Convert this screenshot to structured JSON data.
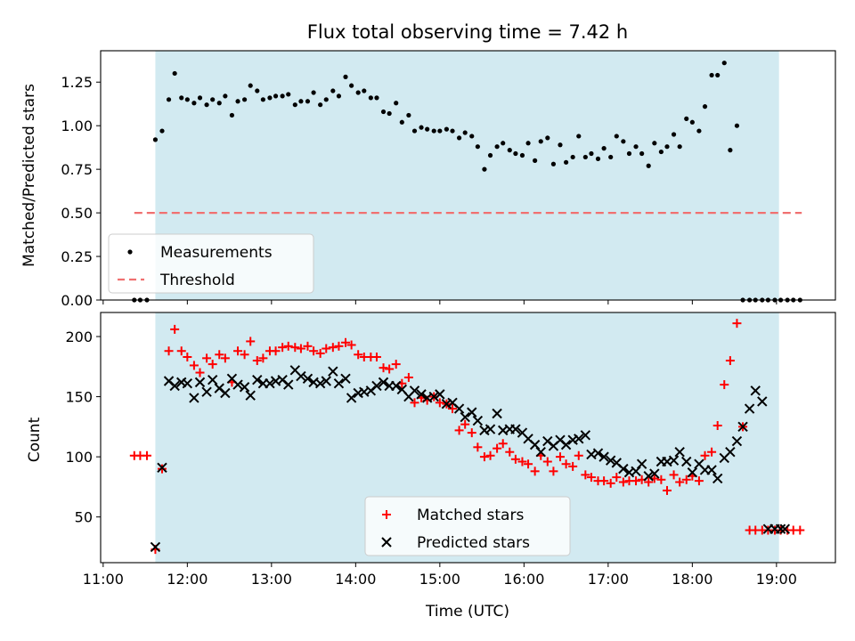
{
  "figure": {
    "title": "Flux total observing time = 7.42 h"
  },
  "chart_data": [
    {
      "type": "scatter",
      "panel": "top",
      "title": "Flux total observing time = 7.42 h",
      "xlabel": "",
      "ylabel": "Matched/Predicted stars",
      "xlim_hours": [
        10.97,
        19.7
      ],
      "ylim": [
        0,
        1.43
      ],
      "yticks": [
        0.0,
        0.25,
        0.5,
        0.75,
        1.0,
        1.25
      ],
      "ytick_labels": [
        "0.00",
        "0.25",
        "0.50",
        "0.75",
        "1.00",
        "1.25"
      ],
      "shaded_interval_hours": [
        11.62,
        19.03
      ],
      "shade_color": "#add8e6",
      "legend": {
        "placement": "lower-left",
        "entries": [
          "Measurements",
          "Threshold"
        ]
      },
      "series": [
        {
          "name": "Measurements",
          "kind": "scatter",
          "marker": "dot",
          "color": "#000000",
          "x": [
            11.37,
            11.44,
            11.52,
            11.62,
            11.7,
            11.78,
            11.85,
            11.93,
            12.0,
            12.08,
            12.15,
            12.23,
            12.3,
            12.38,
            12.45,
            12.53,
            12.6,
            12.68,
            12.75,
            12.83,
            12.9,
            12.98,
            13.05,
            13.13,
            13.2,
            13.28,
            13.35,
            13.43,
            13.5,
            13.58,
            13.65,
            13.73,
            13.8,
            13.88,
            13.95,
            14.03,
            14.1,
            14.18,
            14.25,
            14.33,
            14.4,
            14.48,
            14.55,
            14.63,
            14.7,
            14.78,
            14.85,
            14.93,
            15.0,
            15.08,
            15.15,
            15.23,
            15.3,
            15.38,
            15.45,
            15.53,
            15.6,
            15.68,
            15.75,
            15.83,
            15.9,
            15.98,
            16.05,
            16.13,
            16.2,
            16.28,
            16.35,
            16.43,
            16.5,
            16.58,
            16.65,
            16.73,
            16.8,
            16.88,
            16.95,
            17.03,
            17.1,
            17.18,
            17.25,
            17.33,
            17.4,
            17.48,
            17.55,
            17.63,
            17.7,
            17.78,
            17.85,
            17.93,
            18.0,
            18.08,
            18.15,
            18.23,
            18.3,
            18.38,
            18.45,
            18.53,
            18.6,
            18.68,
            18.75,
            18.83,
            18.9,
            18.98,
            19.05,
            19.13,
            19.2,
            19.28
          ],
          "y": [
            0.0,
            0.0,
            0.0,
            0.92,
            0.97,
            1.15,
            1.3,
            1.16,
            1.15,
            1.13,
            1.16,
            1.12,
            1.15,
            1.13,
            1.17,
            1.06,
            1.14,
            1.15,
            1.23,
            1.2,
            1.15,
            1.16,
            1.17,
            1.17,
            1.18,
            1.12,
            1.14,
            1.14,
            1.19,
            1.12,
            1.15,
            1.2,
            1.17,
            1.28,
            1.23,
            1.19,
            1.2,
            1.16,
            1.16,
            1.08,
            1.07,
            1.13,
            1.02,
            1.06,
            0.97,
            0.99,
            0.98,
            0.97,
            0.97,
            0.98,
            0.97,
            0.93,
            0.96,
            0.94,
            0.88,
            0.75,
            0.83,
            0.88,
            0.9,
            0.86,
            0.84,
            0.83,
            0.9,
            0.8,
            0.91,
            0.93,
            0.78,
            0.89,
            0.79,
            0.82,
            0.94,
            0.82,
            0.84,
            0.81,
            0.87,
            0.82,
            0.94,
            0.91,
            0.84,
            0.88,
            0.84,
            0.77,
            0.9,
            0.85,
            0.88,
            0.95,
            0.88,
            1.04,
            1.02,
            0.97,
            1.11,
            1.29,
            1.29,
            1.36,
            0.86,
            1.0,
            0.0,
            0.0,
            0.0,
            0.0,
            0.0,
            0.0,
            0.0,
            0.0,
            0.0,
            0.0
          ]
        },
        {
          "name": "Threshold",
          "kind": "line",
          "dash": "dashed",
          "color": "#f07070",
          "x": [
            11.37,
            19.3
          ],
          "y": [
            0.5,
            0.5
          ]
        }
      ]
    },
    {
      "type": "scatter",
      "panel": "bottom",
      "title": "",
      "xlabel": "Time (UTC)",
      "ylabel": "Count",
      "xlim_hours": [
        10.97,
        19.7
      ],
      "ylim": [
        12,
        220
      ],
      "yticks": [
        50,
        100,
        150,
        200
      ],
      "ytick_labels": [
        "50",
        "100",
        "150",
        "200"
      ],
      "xticks_hours": [
        11,
        12,
        13,
        14,
        15,
        16,
        17,
        18,
        19
      ],
      "xtick_labels": [
        "11:00",
        "12:00",
        "13:00",
        "14:00",
        "15:00",
        "16:00",
        "17:00",
        "18:00",
        "19:00"
      ],
      "shaded_interval_hours": [
        11.62,
        19.03
      ],
      "shade_color": "#add8e6",
      "legend": {
        "placement": "lower-center",
        "entries": [
          "Matched stars",
          "Predicted stars"
        ]
      },
      "series": [
        {
          "name": "Matched stars",
          "kind": "scatter",
          "marker": "plus",
          "color": "#ff0000",
          "x": [
            11.37,
            11.44,
            11.52,
            11.62,
            11.7,
            11.78,
            11.85,
            11.93,
            12.0,
            12.08,
            12.15,
            12.23,
            12.3,
            12.38,
            12.45,
            12.53,
            12.6,
            12.68,
            12.75,
            12.83,
            12.9,
            12.98,
            13.05,
            13.13,
            13.2,
            13.28,
            13.35,
            13.43,
            13.5,
            13.58,
            13.65,
            13.73,
            13.8,
            13.88,
            13.95,
            14.03,
            14.1,
            14.18,
            14.25,
            14.33,
            14.4,
            14.48,
            14.55,
            14.63,
            14.7,
            14.78,
            14.85,
            14.93,
            15.0,
            15.08,
            15.15,
            15.23,
            15.3,
            15.38,
            15.45,
            15.53,
            15.6,
            15.68,
            15.75,
            15.83,
            15.9,
            15.98,
            16.05,
            16.13,
            16.2,
            16.28,
            16.35,
            16.43,
            16.5,
            16.58,
            16.65,
            16.73,
            16.8,
            16.88,
            16.95,
            17.03,
            17.1,
            17.18,
            17.25,
            17.33,
            17.4,
            17.48,
            17.55,
            17.63,
            17.7,
            17.78,
            17.85,
            17.93,
            18.0,
            18.08,
            18.15,
            18.23,
            18.3,
            18.38,
            18.45,
            18.53,
            18.6,
            18.68,
            18.75,
            18.83,
            18.9,
            18.98,
            19.05,
            19.13,
            19.2,
            19.28
          ],
          "y": [
            101,
            101,
            101,
            23,
            90,
            188,
            206,
            188,
            183,
            176,
            170,
            182,
            177,
            185,
            182,
            162,
            188,
            185,
            196,
            180,
            182,
            188,
            188,
            191,
            192,
            191,
            190,
            192,
            188,
            186,
            190,
            191,
            192,
            195,
            193,
            185,
            183,
            183,
            183,
            174,
            173,
            177,
            161,
            166,
            145,
            149,
            147,
            150,
            145,
            144,
            140,
            122,
            127,
            120,
            108,
            100,
            101,
            107,
            111,
            104,
            98,
            96,
            94,
            88,
            101,
            96,
            88,
            100,
            94,
            92,
            101,
            85,
            83,
            80,
            80,
            78,
            83,
            79,
            80,
            80,
            81,
            79,
            82,
            81,
            72,
            85,
            79,
            81,
            84,
            80,
            101,
            104,
            126,
            160,
            180,
            211,
            125,
            39,
            39,
            39,
            39,
            39,
            39,
            39,
            39,
            39
          ],
          "note_trailing_points": "last points at 19.05-19.28 all 39"
        },
        {
          "name": "Predicted stars",
          "kind": "scatter",
          "marker": "x",
          "color": "#000000",
          "x": [
            11.62,
            11.7,
            11.78,
            11.85,
            11.93,
            12.0,
            12.08,
            12.15,
            12.23,
            12.3,
            12.38,
            12.45,
            12.53,
            12.6,
            12.68,
            12.75,
            12.83,
            12.9,
            12.98,
            13.05,
            13.13,
            13.2,
            13.28,
            13.35,
            13.43,
            13.5,
            13.58,
            13.65,
            13.73,
            13.8,
            13.88,
            13.95,
            14.03,
            14.1,
            14.18,
            14.25,
            14.33,
            14.4,
            14.48,
            14.55,
            14.63,
            14.7,
            14.78,
            14.85,
            14.93,
            15.0,
            15.08,
            15.15,
            15.23,
            15.3,
            15.38,
            15.45,
            15.53,
            15.6,
            15.68,
            15.75,
            15.83,
            15.9,
            15.98,
            16.05,
            16.13,
            16.2,
            16.28,
            16.35,
            16.43,
            16.5,
            16.58,
            16.65,
            16.73,
            16.8,
            16.88,
            16.95,
            17.03,
            17.1,
            17.18,
            17.25,
            17.33,
            17.4,
            17.48,
            17.55,
            17.63,
            17.7,
            17.78,
            17.85,
            17.93,
            18.0,
            18.08,
            18.15,
            18.23,
            18.3,
            18.38,
            18.45,
            18.53,
            18.6,
            18.68,
            18.75,
            18.83,
            18.9,
            18.98,
            19.05,
            19.1
          ],
          "y": [
            25,
            91,
            163,
            159,
            162,
            161,
            149,
            162,
            154,
            164,
            157,
            153,
            165,
            160,
            158,
            151,
            164,
            161,
            161,
            163,
            164,
            160,
            172,
            167,
            165,
            162,
            161,
            163,
            171,
            161,
            165,
            149,
            153,
            154,
            155,
            159,
            162,
            159,
            159,
            156,
            150,
            155,
            152,
            149,
            150,
            152,
            144,
            145,
            140,
            133,
            137,
            130,
            122,
            123,
            136,
            122,
            123,
            123,
            120,
            115,
            110,
            104,
            113,
            109,
            114,
            110,
            114,
            115,
            118,
            102,
            103,
            100,
            97,
            95,
            90,
            87,
            88,
            94,
            84,
            86,
            96,
            96,
            97,
            104,
            96,
            87,
            94,
            89,
            89,
            82,
            99,
            104,
            113,
            125,
            140,
            155,
            146,
            40,
            40,
            40,
            40
          ]
        }
      ]
    }
  ]
}
